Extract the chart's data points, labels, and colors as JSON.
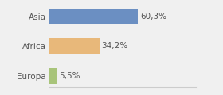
{
  "categories": [
    "Asia",
    "Africa",
    "Europa"
  ],
  "values": [
    60.3,
    34.2,
    5.5
  ],
  "labels": [
    "60,3%",
    "34,2%",
    "5,5%"
  ],
  "bar_colors": [
    "#6b8fc2",
    "#e8b87a",
    "#a8c47a"
  ],
  "background_color": "#f0f0f0",
  "xlim": [
    0,
    100
  ],
  "bar_height": 0.52,
  "label_fontsize": 7.5,
  "tick_fontsize": 7.5
}
